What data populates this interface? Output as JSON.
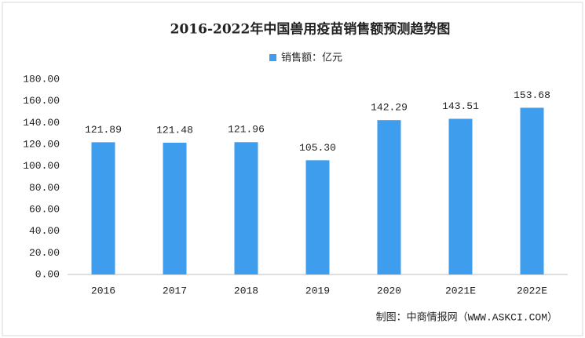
{
  "chart_data": {
    "type": "bar",
    "title": "2016-2022年中国兽用疫苗销售额预测趋势图",
    "categories": [
      "2016",
      "2017",
      "2018",
      "2019",
      "2020",
      "2021E",
      "2022E"
    ],
    "series": [
      {
        "name": "销售额：亿元",
        "color": "#3f9ded",
        "values": [
          121.89,
          121.48,
          121.96,
          105.3,
          142.29,
          143.51,
          153.68
        ],
        "value_labels": [
          "121.89",
          "121.48",
          "121.96",
          "105.30",
          "142.29",
          "143.51",
          "153.68"
        ]
      }
    ],
    "ylim": [
      0,
      180
    ],
    "yticks": [
      {
        "value": 0,
        "label": "0.00"
      },
      {
        "value": 20,
        "label": "20.00"
      },
      {
        "value": 40,
        "label": "40.00"
      },
      {
        "value": 60,
        "label": "60.00"
      },
      {
        "value": 80,
        "label": "80.00"
      },
      {
        "value": 100,
        "label": "100.00"
      },
      {
        "value": 120,
        "label": "120.00"
      },
      {
        "value": 140,
        "label": "140.00"
      },
      {
        "value": 160,
        "label": "160.00"
      },
      {
        "value": 180,
        "label": "180.00"
      }
    ],
    "grid": false,
    "source": "制图：中商情报网（WWW.ASKCI.COM）"
  }
}
